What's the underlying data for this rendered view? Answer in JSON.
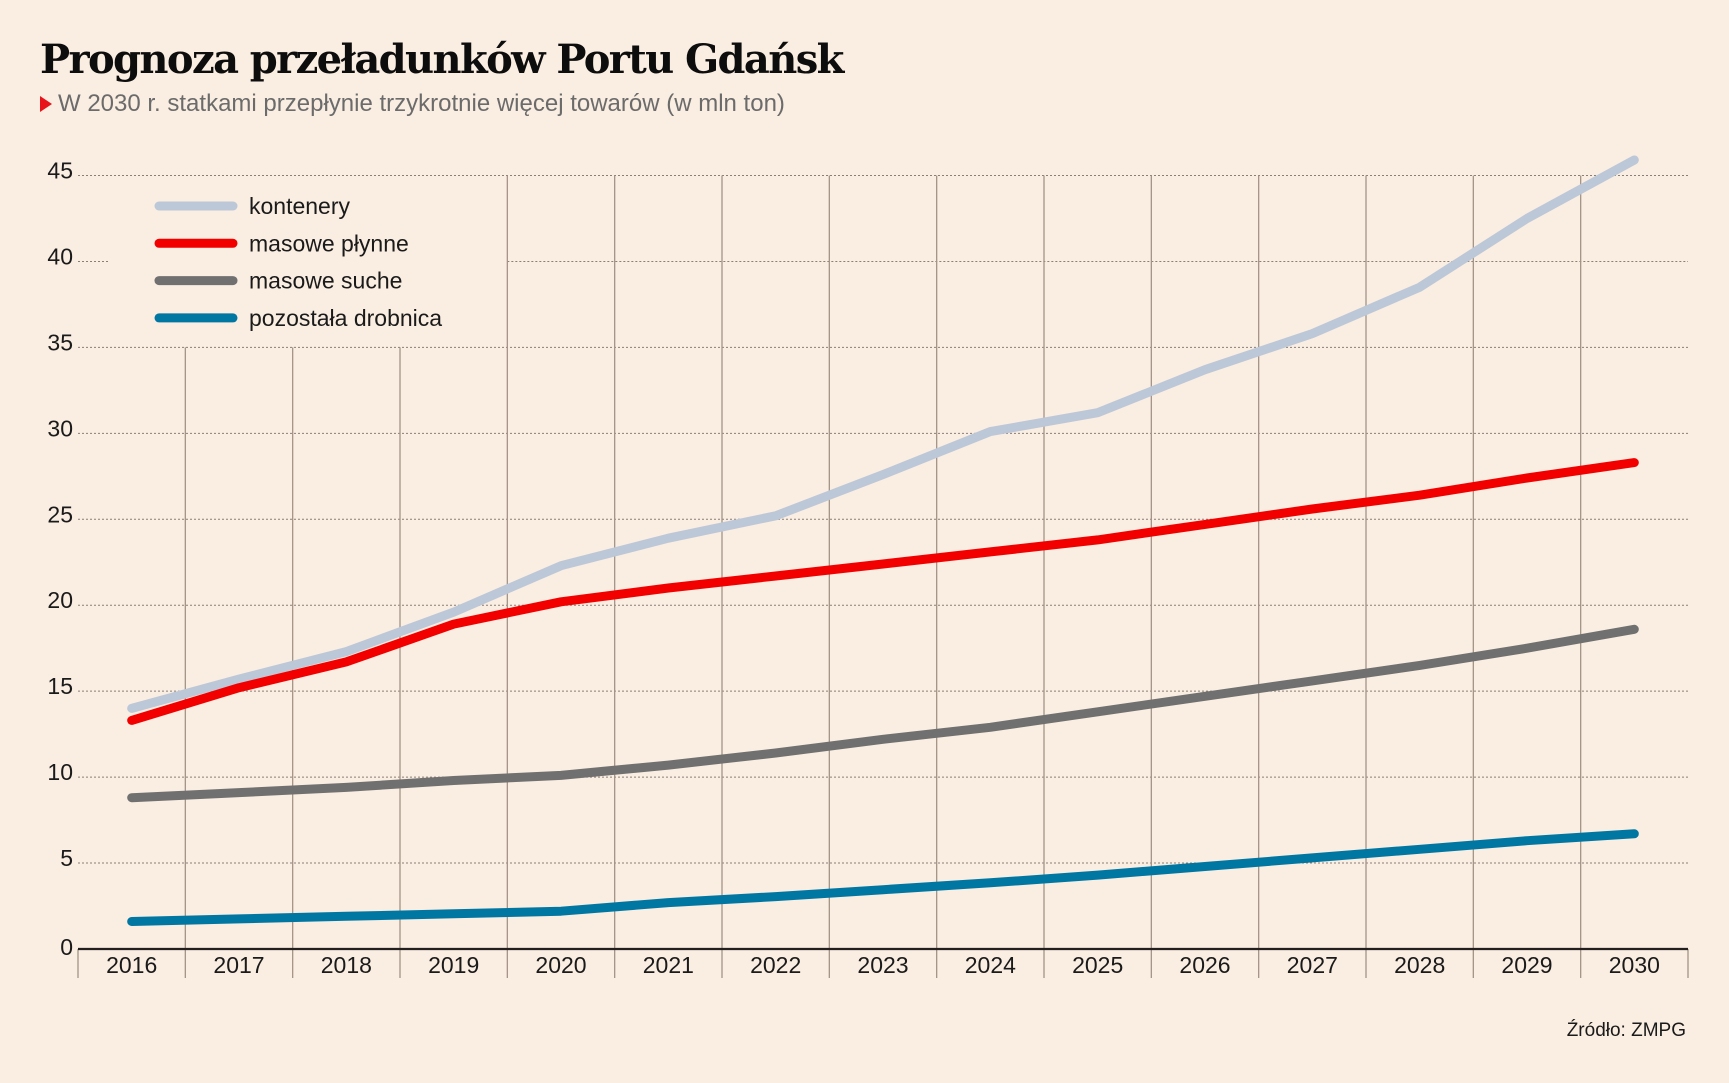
{
  "header": {
    "title": "Prognoza przeładunków Portu Gdańsk",
    "subtitle": "W 2030 r. statkami przepłynie trzykrotnie więcej towarów (w mln ton)",
    "subtitle_marker_color": "#E8141B"
  },
  "footer": {
    "source": "Źródło: ZMPG"
  },
  "chart_data": {
    "type": "line",
    "title": "Prognoza przeładunków Portu Gdańsk",
    "subtitle": "W 2030 r. statkami przepłynie trzykrotnie więcej towarów (w mln ton)",
    "xlabel": "",
    "ylabel": "mln ton",
    "x": [
      "2016",
      "2017",
      "2018",
      "2019",
      "2020",
      "2021",
      "2022",
      "2023",
      "2024",
      "2025",
      "2026",
      "2027",
      "2028",
      "2029",
      "2030"
    ],
    "yticks": [
      0,
      5,
      10,
      15,
      20,
      25,
      30,
      35,
      40,
      45
    ],
    "ylim": [
      0,
      45
    ],
    "grid": true,
    "legend_position": "top-left",
    "series": [
      {
        "name": "kontenery",
        "color": "#BCC7D8",
        "values": [
          14.0,
          15.7,
          17.3,
          19.6,
          22.3,
          23.9,
          25.2,
          27.6,
          30.1,
          31.2,
          33.7,
          35.8,
          38.5,
          42.5,
          45.9
        ]
      },
      {
        "name": "masowe płynne",
        "color": "#F20000",
        "values": [
          13.3,
          15.2,
          16.7,
          18.9,
          20.2,
          21.0,
          21.7,
          22.4,
          23.1,
          23.8,
          24.7,
          25.6,
          26.4,
          27.4,
          28.3
        ]
      },
      {
        "name": "masowe suche",
        "color": "#707070",
        "values": [
          8.8,
          9.1,
          9.4,
          9.8,
          10.1,
          10.7,
          11.4,
          12.2,
          12.9,
          13.8,
          14.7,
          15.6,
          16.5,
          17.5,
          18.6
        ]
      },
      {
        "name": "pozostała drobnica",
        "color": "#0077A2",
        "values": [
          1.6,
          1.75,
          1.9,
          2.05,
          2.2,
          2.7,
          3.05,
          3.45,
          3.85,
          4.3,
          4.8,
          5.3,
          5.8,
          6.3,
          6.7
        ]
      }
    ],
    "source": "Źródło: ZMPG"
  }
}
